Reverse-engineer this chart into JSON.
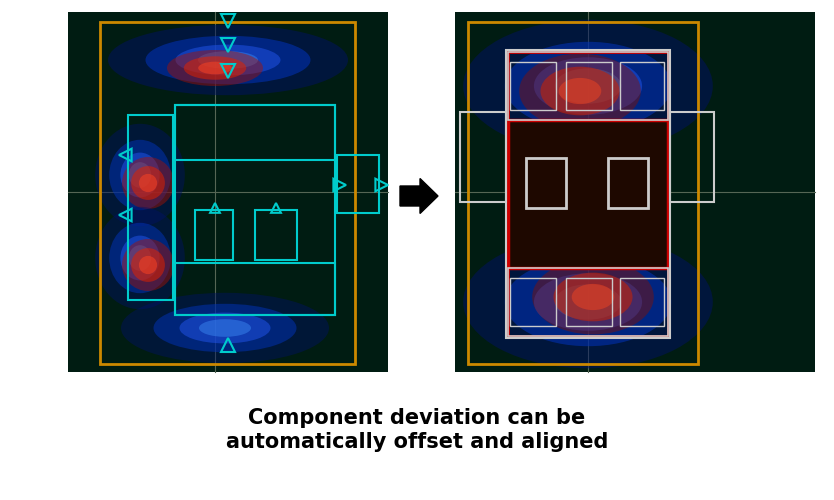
{
  "fig_width": 8.34,
  "fig_height": 5.0,
  "dpi": 100,
  "bg_color": "#ffffff",
  "orange_color": "#cc8800",
  "cyan_color": "#00cccc",
  "red_color": "#cc0000",
  "white_color": "#cccccc",
  "pink_color": "#ddaaaa",
  "caption_line1": "Component deviation can be",
  "caption_line2": "automatically offset and aligned",
  "caption_fontsize": 15
}
